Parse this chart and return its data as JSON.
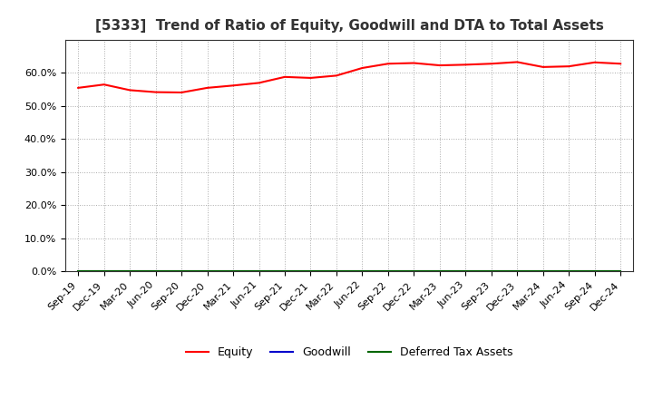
{
  "title": "[5333]  Trend of Ratio of Equity, Goodwill and DTA to Total Assets",
  "x_labels": [
    "Sep-19",
    "Dec-19",
    "Mar-20",
    "Jun-20",
    "Sep-20",
    "Dec-20",
    "Mar-21",
    "Jun-21",
    "Sep-21",
    "Dec-21",
    "Mar-22",
    "Jun-22",
    "Sep-22",
    "Dec-22",
    "Mar-23",
    "Jun-23",
    "Sep-23",
    "Dec-23",
    "Mar-24",
    "Jun-24",
    "Sep-24",
    "Dec-24"
  ],
  "equity": [
    55.5,
    56.5,
    54.8,
    54.2,
    54.1,
    55.5,
    56.2,
    57.0,
    58.8,
    58.5,
    59.2,
    61.5,
    62.8,
    63.0,
    62.3,
    62.5,
    62.8,
    63.3,
    61.8,
    62.0,
    63.2,
    62.8
  ],
  "goodwill": [
    0.0,
    0.0,
    0.0,
    0.0,
    0.0,
    0.0,
    0.0,
    0.0,
    0.0,
    0.0,
    0.0,
    0.0,
    0.0,
    0.0,
    0.0,
    0.0,
    0.0,
    0.0,
    0.0,
    0.0,
    0.0,
    0.0
  ],
  "dta": [
    0.0,
    0.0,
    0.0,
    0.0,
    0.0,
    0.0,
    0.0,
    0.0,
    0.0,
    0.0,
    0.0,
    0.0,
    0.0,
    0.0,
    0.0,
    0.0,
    0.0,
    0.0,
    0.0,
    0.0,
    0.0,
    0.0
  ],
  "equity_color": "#ff0000",
  "goodwill_color": "#0000cc",
  "dta_color": "#006600",
  "ylim": [
    0,
    70
  ],
  "yticks": [
    0,
    10,
    20,
    30,
    40,
    50,
    60
  ],
  "background_color": "#ffffff",
  "plot_bg_color": "#ffffff",
  "grid_color": "#aaaaaa",
  "title_fontsize": 11,
  "tick_fontsize": 8,
  "legend_labels": [
    "Equity",
    "Goodwill",
    "Deferred Tax Assets"
  ],
  "line_width": 1.5
}
